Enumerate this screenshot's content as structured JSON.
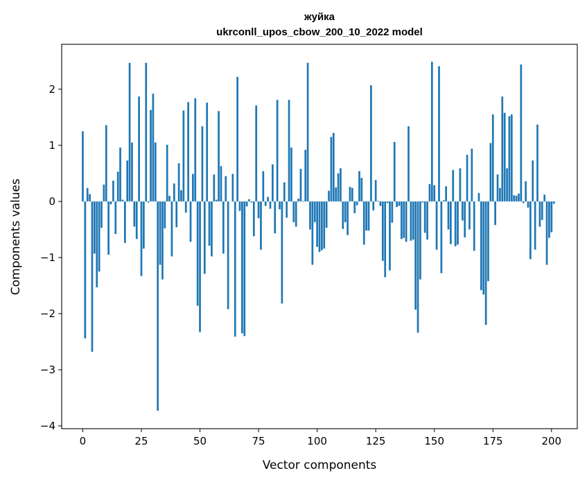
{
  "chart_data": {
    "type": "bar",
    "title": "жуйка",
    "subtitle": "ukrconll_upos_cbow_200_10_2022 model",
    "xlabel": "Vector components",
    "ylabel": "Components values",
    "xlim": [
      -9,
      211
    ],
    "ylim": [
      -4.05,
      2.8
    ],
    "xticks": [
      0,
      25,
      50,
      75,
      100,
      125,
      150,
      175,
      200
    ],
    "yticks": [
      -4,
      -3,
      -2,
      -1,
      0,
      1,
      2
    ],
    "ytick_labels": [
      "−4",
      "−3",
      "−2",
      "−1",
      "0",
      "1",
      "2"
    ],
    "bar_color": "#1f77b4",
    "grid": false,
    "legend": "none",
    "values": [
      1.25,
      -2.44,
      0.24,
      0.13,
      -2.68,
      -0.93,
      -1.53,
      -1.25,
      -0.47,
      0.3,
      1.36,
      -0.95,
      -0.05,
      0.37,
      -0.58,
      0.53,
      0.96,
      0.03,
      -0.74,
      0.73,
      2.47,
      1.05,
      -0.45,
      -0.67,
      1.87,
      -1.33,
      -0.84,
      2.47,
      -0.02,
      1.63,
      1.92,
      1.05,
      -3.73,
      -1.13,
      -1.39,
      -0.48,
      1.01,
      0.1,
      -0.98,
      0.32,
      -0.46,
      0.68,
      0.2,
      1.62,
      -0.2,
      1.77,
      -0.72,
      0.49,
      1.84,
      -1.86,
      -2.33,
      1.34,
      -1.29,
      1.76,
      -0.79,
      -0.98,
      0.48,
      0.03,
      1.61,
      0.63,
      -0.93,
      0.45,
      -1.92,
      0.0,
      0.49,
      -2.41,
      2.22,
      -0.17,
      -2.35,
      -2.4,
      -0.09,
      0.04,
      -0.02,
      -0.62,
      1.71,
      -0.3,
      -0.86,
      0.54,
      -0.08,
      0.08,
      -0.13,
      0.66,
      -0.57,
      1.81,
      -0.14,
      -1.82,
      0.34,
      -0.29,
      1.81,
      0.96,
      -0.37,
      -0.45,
      0.05,
      0.58,
      0.01,
      0.92,
      2.47,
      -0.5,
      -1.13,
      -0.37,
      -0.81,
      -0.9,
      -0.87,
      -0.84,
      -0.47,
      0.19,
      1.15,
      1.22,
      0.25,
      0.5,
      0.59,
      -0.49,
      -0.37,
      -0.6,
      0.26,
      0.24,
      -0.21,
      -0.07,
      0.54,
      0.42,
      -0.77,
      -0.52,
      -0.52,
      2.07,
      -0.16,
      0.38,
      0.01,
      -0.08,
      -1.06,
      -1.35,
      -0.03,
      -1.23,
      -0.38,
      1.06,
      -0.1,
      -0.08,
      -0.67,
      -0.65,
      -0.72,
      1.34,
      -0.7,
      -0.68,
      -1.93,
      -2.34,
      -1.39,
      -0.02,
      -0.56,
      -0.68,
      0.31,
      2.49,
      0.29,
      -0.86,
      2.41,
      -1.28,
      0.02,
      0.27,
      -0.5,
      -0.76,
      0.56,
      -0.8,
      -0.77,
      0.59,
      -0.34,
      -0.64,
      0.83,
      -0.5,
      0.94,
      -0.88,
      0.0,
      0.15,
      -1.58,
      -1.66,
      -2.2,
      -1.42,
      1.04,
      1.55,
      -0.42,
      0.48,
      0.24,
      1.87,
      1.58,
      0.59,
      1.52,
      1.55,
      0.11,
      0.1,
      0.14,
      2.44,
      -0.03,
      0.36,
      -0.11,
      -1.03,
      0.73,
      -0.86,
      1.37,
      -0.45,
      -0.33,
      0.12,
      -1.13,
      -0.65,
      -0.55,
      -0.04
    ]
  }
}
